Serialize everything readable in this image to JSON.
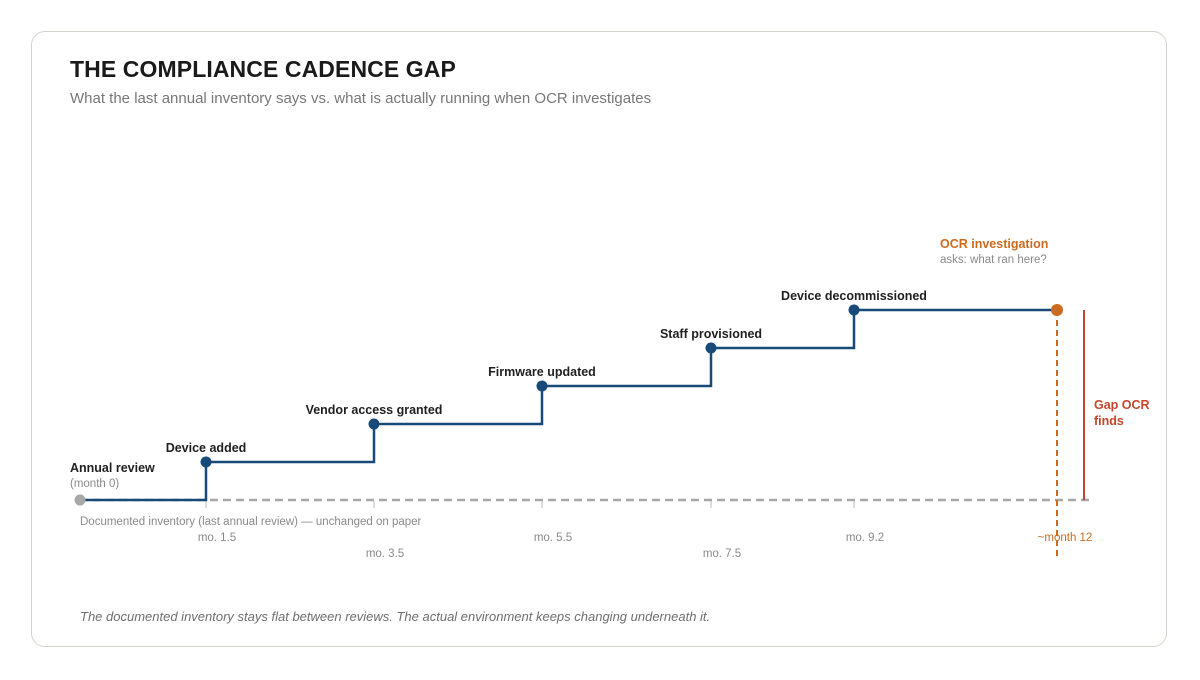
{
  "header": {
    "title": "THE COMPLIANCE CADENCE GAP",
    "subtitle": "What the last annual inventory says vs. what is actually running when OCR investigates"
  },
  "footnote": "The documented inventory stays flat between reviews. The actual environment keeps changing underneath it.",
  "colors": {
    "actual_line": "#174a78",
    "documented_line": "#a8a8a8",
    "investigation": "#cc6a1f",
    "gap": "#c4462d"
  },
  "baseline": {
    "label": "Documented inventory (last annual review) — unchanged on paper"
  },
  "start_event": {
    "label": "Annual review",
    "sublabel": "(month 0)",
    "month": 0
  },
  "events": [
    {
      "label": "Device added",
      "month": 1.5,
      "tick_label": "mo. 1.5"
    },
    {
      "label": "Vendor access granted",
      "month": 3.5,
      "tick_label": "mo. 3.5"
    },
    {
      "label": "Firmware updated",
      "month": 5.5,
      "tick_label": "mo. 5.5"
    },
    {
      "label": "Staff provisioned",
      "month": 7.5,
      "tick_label": "mo. 7.5"
    },
    {
      "label": "Device decommissioned",
      "month": 9.2,
      "tick_label": "mo. 9.2"
    }
  ],
  "investigation": {
    "label": "OCR investigation",
    "sublabel": "asks: what ran here?",
    "month": 11.7,
    "tick_label": "~month 12"
  },
  "gap": {
    "label_line1": "Gap OCR",
    "label_line2": "finds"
  }
}
